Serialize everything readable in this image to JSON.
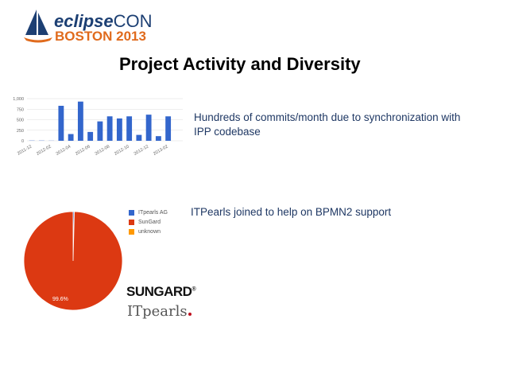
{
  "logo": {
    "line1_a": "eclipse",
    "line1_b": "CON",
    "line2": "BOSTON 2013"
  },
  "slide": {
    "title": "Project Activity and Diversity",
    "note_commits": "Hundreds of commits/month due to synchronization with IPP codebase",
    "note_itpearls": "ITPearls joined to help on BPMN2 support"
  },
  "brands": {
    "sungard": "SUNGARD",
    "sungard_mark": "®",
    "itpearls": "ITpearls"
  },
  "chart_data": [
    {
      "type": "bar",
      "categories": [
        "2011-12",
        "2012-01",
        "2012-02",
        "2012-03",
        "2012-04",
        "2012-05",
        "2012-06",
        "2012-07",
        "2012-08",
        "2012-09",
        "2012-10",
        "2012-11",
        "2012-12",
        "2013-01",
        "2013-02",
        "2013-03"
      ],
      "tick_labels": [
        "2011-12",
        "2012-02",
        "2012-04",
        "2012-06",
        "2012-08",
        "2012-10",
        "2012-12",
        "2013-02"
      ],
      "values": [
        5,
        5,
        3,
        830,
        160,
        930,
        210,
        460,
        580,
        530,
        580,
        140,
        620,
        110,
        580,
        0
      ],
      "y_ticks": [
        "0",
        "250",
        "500",
        "750",
        "1,000"
      ],
      "ylim": [
        0,
        1000
      ],
      "color": "#3366cc",
      "grid": true
    },
    {
      "type": "pie",
      "slices": [
        {
          "label": "ITpearls AG",
          "value": 0.4,
          "color": "#3366cc"
        },
        {
          "label": "SunGard",
          "value": 99.6,
          "color": "#dc3912"
        },
        {
          "label": "unknown",
          "value": 0.0,
          "color": "#ff9900"
        }
      ],
      "slice_label": "99.6%",
      "legend_position": "right"
    }
  ]
}
